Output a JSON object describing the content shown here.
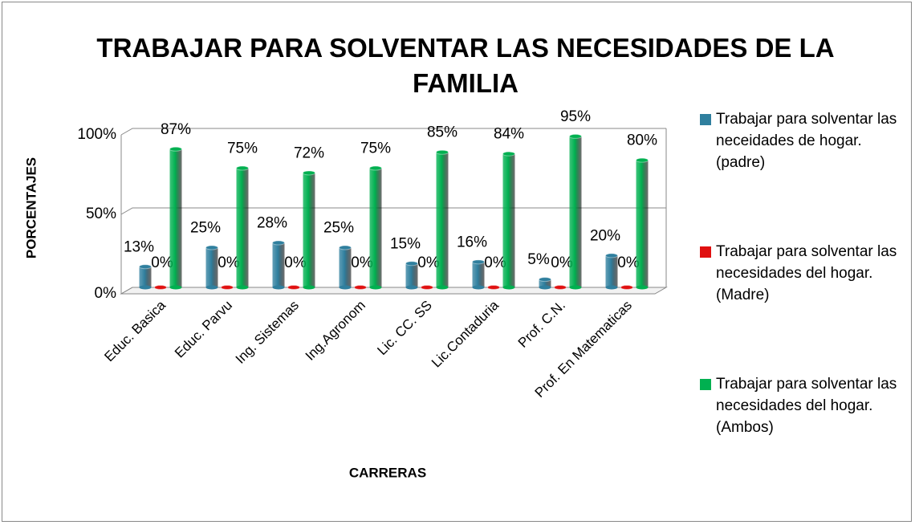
{
  "chart_data": {
    "type": "bar3d",
    "title": "TRABAJAR PARA SOLVENTAR LAS NECESIDADES DE LA FAMILIA",
    "xlabel": "CARRERAS",
    "ylabel": "PORCENTAJES",
    "categories": [
      "Educ. Basica",
      "Educ. Parvu",
      "Ing. Sistemas",
      "Ing.Agronom",
      "Lic. CC. SS",
      "Lic.Contaduria",
      "Prof. C.N.",
      "Prof. En Matematicas"
    ],
    "series": [
      {
        "name": "Trabajar para solventar las neceidades de hogar. (padre)",
        "color": "#2f7f9e",
        "values": [
          13,
          25,
          28,
          25,
          15,
          16,
          5,
          20
        ],
        "value_labels": [
          "13%",
          "25%",
          "28%",
          "25%",
          "15%",
          "16%",
          "5%",
          "20%"
        ]
      },
      {
        "name": "Trabajar para solventar las necesidades del hogar. (Madre)",
        "color": "#e01010",
        "values": [
          0,
          0,
          0,
          0,
          0,
          0,
          0,
          0
        ],
        "value_labels": [
          "0%",
          "0%",
          "0%",
          "0%",
          "0%",
          "0%",
          "0%",
          "0%"
        ]
      },
      {
        "name": "Trabajar para solventar las necesidades del hogar. (Ambos)",
        "color": "#00b050",
        "values": [
          87,
          75,
          72,
          75,
          85,
          84,
          95,
          80
        ],
        "value_labels": [
          "87%",
          "75%",
          "72%",
          "75%",
          "85%",
          "84%",
          "95%",
          "80%"
        ]
      }
    ],
    "ylim": [
      0,
      100
    ],
    "yticks": [
      {
        "value": 0,
        "label": "0%"
      },
      {
        "value": 50,
        "label": "50%"
      },
      {
        "value": 100,
        "label": "100%"
      }
    ],
    "grid": true,
    "legend": "right"
  }
}
